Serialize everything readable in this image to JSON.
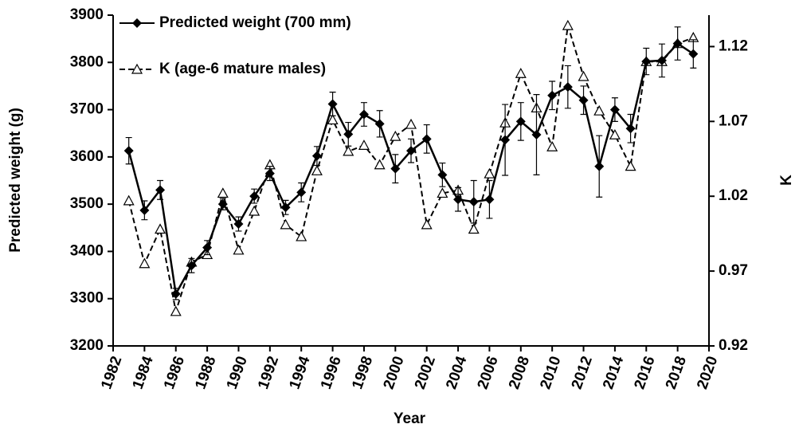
{
  "chart_data": {
    "type": "line",
    "x_label": "Year",
    "y_label": "Predicted weight (g)",
    "y2_label": "K",
    "x": [
      1983,
      1984,
      1985,
      1986,
      1987,
      1988,
      1989,
      1990,
      1991,
      1992,
      1993,
      1994,
      1995,
      1996,
      1997,
      1998,
      1999,
      2000,
      2001,
      2002,
      2003,
      2004,
      2005,
      2006,
      2007,
      2008,
      2009,
      2010,
      2011,
      2012,
      2013,
      2014,
      2015,
      2016,
      2017,
      2018,
      2019
    ],
    "series": [
      {
        "name": "Predicted weight (700 mm)",
        "color": "#000000",
        "marker": "diamond",
        "dash": false,
        "values": [
          3613,
          3487,
          3530,
          3310,
          3370,
          3408,
          3500,
          3458,
          3517,
          3565,
          3493,
          3525,
          3602,
          3712,
          3648,
          3690,
          3670,
          3575,
          3613,
          3638,
          3562,
          3510,
          3505,
          3510,
          3636,
          3675,
          3647,
          3730,
          3748,
          3720,
          3580,
          3700,
          3660,
          3802,
          3804,
          3840,
          3818
        ],
        "errors": [
          28,
          20,
          20,
          12,
          15,
          15,
          12,
          15,
          15,
          15,
          15,
          20,
          20,
          25,
          25,
          25,
          28,
          30,
          25,
          30,
          25,
          25,
          45,
          40,
          75,
          40,
          85,
          30,
          45,
          30,
          65,
          25,
          30,
          28,
          35,
          35,
          30
        ]
      },
      {
        "name": "K (age-6 mature males)",
        "color": "#000000",
        "marker": "open-triangle",
        "dash": true,
        "axis": "y2",
        "values": [
          1.017,
          0.975,
          0.998,
          0.943,
          0.976,
          0.981,
          1.022,
          0.984,
          1.01,
          1.041,
          1.001,
          0.993,
          1.037,
          1.071,
          1.05,
          1.054,
          1.041,
          1.06,
          1.068,
          1.001,
          1.022,
          1.024,
          0.998,
          1.035,
          1.069,
          1.102,
          1.079,
          1.053,
          1.134,
          1.1,
          1.077,
          1.061,
          1.04,
          1.11,
          1.11,
          1.122,
          1.126
        ]
      }
    ],
    "xlim": [
      1982,
      2020
    ],
    "xticks": [
      1982,
      1984,
      1986,
      1988,
      1990,
      1992,
      1994,
      1996,
      1998,
      2000,
      2002,
      2004,
      2006,
      2008,
      2010,
      2012,
      2014,
      2016,
      2018,
      2020
    ],
    "ylim": [
      3200,
      3900
    ],
    "yticks": [
      3200,
      3300,
      3400,
      3500,
      3600,
      3700,
      3800,
      3900
    ],
    "y2lim": [
      0.92,
      1.141
    ],
    "y2ticks": [
      0.92,
      0.97,
      1.02,
      1.07,
      1.12
    ],
    "legend": "top-left",
    "grid": false
  }
}
